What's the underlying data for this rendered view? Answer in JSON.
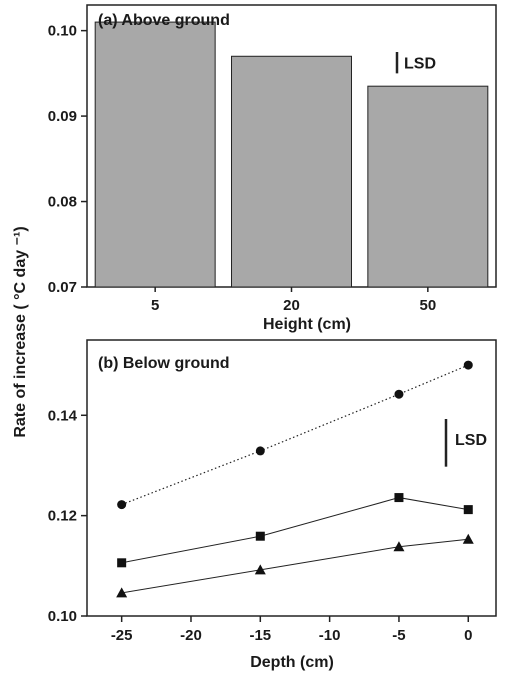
{
  "y_axis_label": "Rate of increase ( °C day ⁻¹)",
  "chart_data": [
    {
      "type": "bar",
      "title": "(a)  Above ground",
      "xlabel": "Height (cm)",
      "ylabel": "",
      "categories": [
        "5",
        "20",
        "50"
      ],
      "values": [
        0.101,
        0.097,
        0.0935
      ],
      "ylim": [
        0.07,
        0.103
      ],
      "yticks": [
        0.07,
        0.08,
        0.09,
        0.1
      ],
      "ytick_labels": [
        "0.07",
        "0.08",
        "0.09",
        "0.10"
      ],
      "lsd": {
        "label": "LSD",
        "length": 0.0025
      },
      "bar_color": "#a8a8a8"
    },
    {
      "type": "line",
      "title": "(b)  Below ground",
      "xlabel": "Depth (cm)",
      "ylabel": "",
      "x": [
        -25,
        -15,
        -5,
        0
      ],
      "xlim": [
        -27.5,
        2
      ],
      "xticks": [
        -25,
        -20,
        -15,
        -10,
        -5,
        0
      ],
      "xtick_labels": [
        "-25",
        "-20",
        "-15",
        "-10",
        "-5",
        "0"
      ],
      "ylim": [
        0.1,
        0.155
      ],
      "yticks": [
        0.1,
        0.12,
        0.14
      ],
      "ytick_labels": [
        "0.10",
        "0.12",
        "0.14"
      ],
      "series": [
        {
          "marker": "circle",
          "style": "dotted",
          "values": [
            0.1222,
            0.1329,
            0.1442,
            0.15
          ]
        },
        {
          "marker": "square",
          "style": "solid",
          "values": [
            0.1106,
            0.1159,
            0.1236,
            0.1212
          ]
        },
        {
          "marker": "triangle",
          "style": "solid",
          "values": [
            0.1046,
            0.1092,
            0.1138,
            0.1153
          ]
        }
      ],
      "lsd": {
        "label": "LSD",
        "length": 0.0095
      }
    }
  ]
}
